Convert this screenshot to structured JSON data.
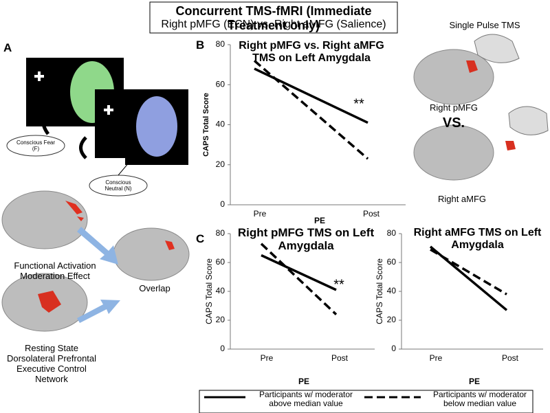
{
  "header": {
    "title": "Concurrent TMS-fMRI (Immediate Treatment only)",
    "subtitle": "Right pMFG (ECN) vs. Right aMFG (Salience)"
  },
  "panel_labels": [
    "A",
    "B",
    "C"
  ],
  "panel_a": {
    "fear_label": "Conscious Fear (F)",
    "neutral_label": "Conscious Neutral (N)",
    "activation_label": "Functional Activation Moderation Effect",
    "resting_label": "Resting State Dorsolateral Prefrontal Executive Control Network",
    "overlap_label": "Overlap"
  },
  "tms_panel": {
    "title": "Single Pulse TMS",
    "pmfg_label": "Right pMFG",
    "vs_label": "VS.",
    "amfg_label": "Right aMFG"
  },
  "chart_data": [
    {
      "type": "line",
      "title": "Right pMFG vs. Right aMFG TMS on Left Amygdala",
      "y_label": "CAPS Total Score",
      "x_label": "PE",
      "categories": [
        "Pre",
        "Post"
      ],
      "ylim": [
        0,
        80
      ],
      "yticks": [
        0,
        20,
        40,
        60,
        80
      ],
      "annotations": [
        "**"
      ],
      "series": [
        {
          "name": "Participants w/ moderator above median value",
          "color": "#000000",
          "style": "solid",
          "values": [
            68,
            41
          ]
        },
        {
          "name": "Participants w/ moderator below median value",
          "color": "#000000",
          "style": "dashed",
          "values": [
            72,
            23
          ]
        }
      ]
    },
    {
      "type": "line",
      "title": "Right pMFG TMS on Left Amygdala",
      "y_label": "CAPS Total Score",
      "x_label": "PE",
      "categories": [
        "Pre",
        "Post"
      ],
      "ylim": [
        0,
        80
      ],
      "yticks": [
        0,
        20,
        40,
        60,
        80
      ],
      "annotations": [
        "**"
      ],
      "series": [
        {
          "color": "#000000",
          "style": "solid",
          "values": [
            65,
            41
          ]
        },
        {
          "color": "#000000",
          "style": "dashed",
          "values": [
            73,
            24
          ]
        }
      ]
    },
    {
      "type": "line",
      "title": "Right aMFG TMS on Left Amygdala",
      "y_label": "CAPS Total Score",
      "x_label": "PE",
      "categories": [
        "Pre",
        "Post"
      ],
      "ylim": [
        0,
        80
      ],
      "yticks": [
        0,
        20,
        40,
        60,
        80
      ],
      "series": [
        {
          "color": "#000000",
          "style": "solid",
          "values": [
            71,
            27
          ]
        },
        {
          "color": "#000000",
          "style": "dashed",
          "values": [
            69,
            38
          ]
        }
      ]
    }
  ]
}
